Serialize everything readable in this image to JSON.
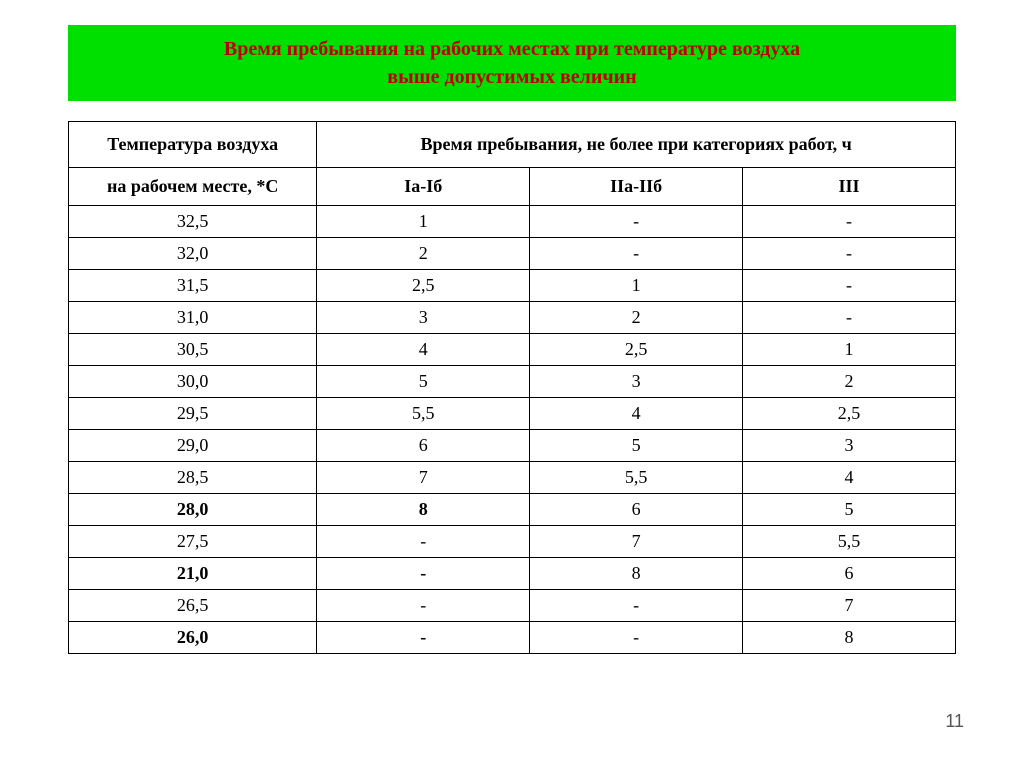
{
  "title": {
    "line1": "Время пребывания на рабочих местах при температуре воздуха",
    "line2": "выше допустимых величин"
  },
  "table": {
    "header1": {
      "temp": "Температура воздуха",
      "time": "Время пребывания, не более при категориях работ, ч"
    },
    "header2": {
      "temp": "на рабочем месте, *С",
      "cat1": "Iа-Iб",
      "cat2": "IIа-IIб",
      "cat3": "III"
    },
    "rows": [
      {
        "temp": "32,5",
        "c1": "1",
        "c2": "-",
        "c3": "-",
        "bold": false
      },
      {
        "temp": "32,0",
        "c1": "2",
        "c2": "-",
        "c3": "-",
        "bold": false
      },
      {
        "temp": "31,5",
        "c1": "2,5",
        "c2": "1",
        "c3": "-",
        "bold": false
      },
      {
        "temp": "31,0",
        "c1": "3",
        "c2": "2",
        "c3": "-",
        "bold": false
      },
      {
        "temp": "30,5",
        "c1": "4",
        "c2": "2,5",
        "c3": "1",
        "bold": false
      },
      {
        "temp": "30,0",
        "c1": "5",
        "c2": "3",
        "c3": "2",
        "bold": false
      },
      {
        "temp": "29,5",
        "c1": "5,5",
        "c2": "4",
        "c3": "2,5",
        "bold": false
      },
      {
        "temp": "29,0",
        "c1": "6",
        "c2": "5",
        "c3": "3",
        "bold": false
      },
      {
        "temp": "28,5",
        "c1": "7",
        "c2": "5,5",
        "c3": "4",
        "bold": false
      },
      {
        "temp": "28,0",
        "c1": "8",
        "c2": "6",
        "c3": "5",
        "bold": true
      },
      {
        "temp": "27,5",
        "c1": "-",
        "c2": "7",
        "c3": "5,5",
        "bold": false
      },
      {
        "temp": "21,0",
        "c1": "-",
        "c2": "8",
        "c3": "6",
        "bold": true
      },
      {
        "temp": "26,5",
        "c1": "-",
        "c2": "-",
        "c3": "7",
        "bold": false
      },
      {
        "temp": "26,0",
        "c1": "-",
        "c2": "-",
        "c3": "8",
        "bold": true
      }
    ]
  },
  "pageNumber": "11",
  "colors": {
    "banner_bg": "#00e000",
    "title_text": "#c00000",
    "border": "#000000",
    "page_bg": "#ffffff"
  },
  "fonts": {
    "body": "Times New Roman",
    "title_size_pt": 20,
    "cell_size_pt": 18
  }
}
